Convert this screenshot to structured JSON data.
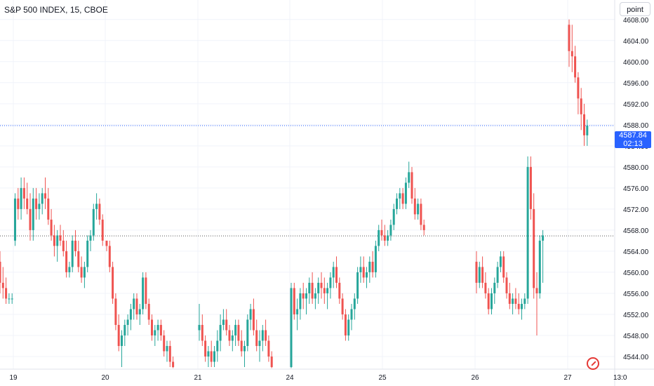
{
  "header": {
    "title": "S&P 500 INDEX, 15, CBOE",
    "point_button": "point"
  },
  "last_price": {
    "value": "4587.84",
    "countdown": "02:13"
  },
  "colors": {
    "up": "#26a69a",
    "down": "#ef5350",
    "grid": "#f0f3fa",
    "last_line": "#2962ff",
    "ref_line": "#555555"
  },
  "chart_data": {
    "type": "candlestick",
    "title": "S&P 500 INDEX, 15, CBOE",
    "ylim": [
      4541.6,
      4611.7
    ],
    "yticks": [
      "4544.00",
      "4548.00",
      "4552.00",
      "4556.00",
      "4560.00",
      "4564.00",
      "4568.00",
      "4572.00",
      "4576.00",
      "4580.00",
      "4584.00",
      "4588.00",
      "4592.00",
      "4596.00",
      "4600.00",
      "4604.00",
      "4608.00"
    ],
    "xticks": [
      "19",
      "20",
      "21",
      "24",
      "25",
      "26",
      "27",
      "13:0"
    ],
    "last_price": 4587.84,
    "reference_price": 4566.9,
    "days": [
      {
        "label": "19",
        "candles": [
          [
            4562,
            4564,
            4556,
            4558
          ],
          [
            4558,
            4561,
            4555,
            4557
          ],
          [
            4557,
            4559,
            4554,
            4555
          ],
          [
            4555,
            4556,
            4554,
            4555
          ],
          [
            4555,
            4556,
            4554,
            4555
          ],
          [
            4566,
            4575,
            4565,
            4574
          ],
          [
            4574,
            4576,
            4570,
            4572
          ],
          [
            4572,
            4578,
            4570,
            4576
          ],
          [
            4576,
            4578,
            4572,
            4574
          ],
          [
            4574,
            4577,
            4571,
            4572
          ],
          [
            4572,
            4575,
            4566,
            4568
          ],
          [
            4568,
            4576,
            4566,
            4574
          ],
          [
            4574,
            4576,
            4570,
            4572
          ],
          [
            4572,
            4575,
            4570,
            4573
          ],
          [
            4573,
            4576,
            4571,
            4575
          ],
          [
            4575,
            4578,
            4572,
            4574
          ],
          [
            4574,
            4576,
            4569,
            4570
          ],
          [
            4570,
            4572,
            4566,
            4567
          ],
          [
            4567,
            4569,
            4563,
            4565
          ],
          [
            4565,
            4568,
            4562,
            4567
          ],
          [
            4567,
            4569,
            4565,
            4566
          ],
          [
            4566,
            4568,
            4563,
            4564
          ],
          [
            4564,
            4566,
            4559,
            4560
          ],
          [
            4560,
            4562,
            4559,
            4561
          ],
          [
            4561,
            4567,
            4560,
            4566
          ],
          [
            4566,
            4568,
            4563,
            4564
          ],
          [
            4564,
            4566,
            4560,
            4561
          ],
          [
            4561,
            4563,
            4558,
            4559
          ],
          [
            4559,
            4562,
            4557,
            4561
          ],
          [
            4561,
            4567,
            4560,
            4566
          ],
          [
            4566,
            4568,
            4564,
            4567
          ],
          [
            4567,
            4573,
            4566,
            4572
          ],
          [
            4572,
            4575,
            4570,
            4573
          ],
          [
            4573,
            4574,
            4569,
            4570
          ],
          [
            4570,
            4571,
            4565,
            4566
          ]
        ]
      },
      {
        "label": "20",
        "candles": [
          [
            4566,
            4566,
            4564,
            4565
          ],
          [
            4565,
            4566,
            4560,
            4561
          ],
          [
            4561,
            4562,
            4554,
            4555
          ],
          [
            4555,
            4556,
            4549,
            4550
          ],
          [
            4550,
            4552,
            4545,
            4546
          ],
          [
            4546,
            4549,
            4542,
            4548
          ],
          [
            4548,
            4551,
            4546,
            4550
          ],
          [
            4550,
            4552,
            4548,
            4551
          ],
          [
            4551,
            4554,
            4549,
            4553
          ],
          [
            4553,
            4556,
            4551,
            4555
          ],
          [
            4555,
            4556,
            4551,
            4552
          ],
          [
            4552,
            4554,
            4550,
            4553
          ],
          [
            4553,
            4560,
            4552,
            4559
          ],
          [
            4559,
            4560,
            4553,
            4554
          ],
          [
            4554,
            4555,
            4550,
            4551
          ],
          [
            4551,
            4552,
            4547,
            4548
          ],
          [
            4548,
            4550,
            4546,
            4549
          ],
          [
            4549,
            4551,
            4547,
            4550
          ],
          [
            4550,
            4551,
            4547,
            4548
          ],
          [
            4548,
            4549,
            4544,
            4545
          ],
          [
            4545,
            4547,
            4543,
            4546
          ],
          [
            4546,
            4547,
            4542,
            4543
          ],
          [
            4543,
            4544,
            4541.8,
            4542
          ]
        ]
      },
      {
        "label": "21",
        "candles": [
          [
            4549,
            4554,
            4547,
            4550
          ],
          [
            4550,
            4552,
            4546,
            4547
          ],
          [
            4547,
            4548,
            4543,
            4544
          ],
          [
            4544,
            4546,
            4542,
            4545
          ],
          [
            4545,
            4547,
            4542,
            4543
          ],
          [
            4543,
            4546,
            4542,
            4545
          ],
          [
            4545,
            4549,
            4543,
            4547
          ],
          [
            4547,
            4552,
            4545,
            4550
          ],
          [
            4550,
            4553,
            4549,
            4551
          ],
          [
            4551,
            4553,
            4548,
            4549
          ],
          [
            4549,
            4550,
            4546,
            4547
          ],
          [
            4547,
            4549,
            4545,
            4548
          ],
          [
            4548,
            4551,
            4546,
            4550
          ],
          [
            4550,
            4551,
            4546,
            4547
          ],
          [
            4547,
            4549,
            4544,
            4545
          ],
          [
            4545,
            4547,
            4542,
            4546
          ],
          [
            4546,
            4552,
            4545,
            4551
          ],
          [
            4551,
            4554,
            4549,
            4553
          ],
          [
            4553,
            4555,
            4548,
            4549
          ],
          [
            4549,
            4551,
            4545,
            4546
          ],
          [
            4546,
            4549,
            4543,
            4547
          ],
          [
            4547,
            4550,
            4545,
            4549
          ],
          [
            4549,
            4551,
            4546,
            4547
          ],
          [
            4547,
            4548,
            4543,
            4544
          ],
          [
            4544,
            4545,
            4541.8,
            4542
          ]
        ]
      },
      {
        "label": "24",
        "candles": [
          [
            4542,
            4558,
            4541.8,
            4557
          ],
          [
            4557,
            4558,
            4551,
            4552
          ],
          [
            4552,
            4555,
            4549,
            4553
          ],
          [
            4553,
            4557,
            4551,
            4556
          ],
          [
            4556,
            4558,
            4553,
            4555
          ],
          [
            4555,
            4557,
            4552,
            4556
          ],
          [
            4556,
            4559,
            4554,
            4558
          ],
          [
            4558,
            4560,
            4554,
            4555
          ],
          [
            4555,
            4557,
            4553,
            4556
          ],
          [
            4556,
            4559,
            4554,
            4558
          ],
          [
            4558,
            4560,
            4555,
            4557
          ],
          [
            4557,
            4559,
            4554,
            4556
          ],
          [
            4556,
            4558,
            4553,
            4557
          ],
          [
            4557,
            4560,
            4555,
            4559
          ],
          [
            4559,
            4562,
            4557,
            4561
          ],
          [
            4561,
            4563,
            4557,
            4558
          ],
          [
            4558,
            4559,
            4554,
            4555
          ],
          [
            4555,
            4556,
            4551,
            4552
          ],
          [
            4552,
            4553,
            4547,
            4548
          ],
          [
            4548,
            4552,
            4547,
            4551
          ],
          [
            4551,
            4554,
            4549,
            4553
          ],
          [
            4553,
            4556,
            4551,
            4555
          ],
          [
            4555,
            4561,
            4554,
            4560
          ],
          [
            4560,
            4563,
            4558,
            4561
          ],
          [
            4561,
            4563,
            4558,
            4559
          ],
          [
            4559,
            4561,
            4557,
            4560
          ],
          [
            4560,
            4563,
            4558,
            4562
          ],
          [
            4562,
            4564,
            4559,
            4560
          ],
          [
            4560,
            4566,
            4559,
            4565
          ],
          [
            4565,
            4569,
            4564,
            4568
          ],
          [
            4568,
            4570,
            4566,
            4567
          ],
          [
            4567,
            4569,
            4565,
            4566
          ],
          [
            4566,
            4568,
            4565,
            4567
          ],
          [
            4567,
            4570,
            4566,
            4569
          ],
          [
            4569,
            4573,
            4568,
            4572
          ],
          [
            4572,
            4575,
            4571,
            4574
          ],
          [
            4574,
            4576,
            4572,
            4575
          ],
          [
            4575,
            4576,
            4572,
            4573
          ],
          [
            4573,
            4578,
            4572,
            4577
          ],
          [
            4577,
            4581,
            4576,
            4579
          ],
          [
            4579,
            4580,
            4573,
            4574
          ],
          [
            4574,
            4576,
            4570,
            4571
          ],
          [
            4571,
            4574,
            4570,
            4573
          ],
          [
            4573,
            4574,
            4568,
            4569
          ],
          [
            4569,
            4570,
            4567,
            4568
          ]
        ]
      },
      {
        "label": "26",
        "candles": [
          [
            4562,
            4564,
            4556,
            4558
          ],
          [
            4558,
            4562,
            4557,
            4561
          ],
          [
            4561,
            4563,
            4557,
            4558
          ],
          [
            4558,
            4560,
            4555,
            4556
          ],
          [
            4556,
            4557,
            4552,
            4553
          ],
          [
            4553,
            4557,
            4552,
            4556
          ],
          [
            4556,
            4559,
            4554,
            4558
          ],
          [
            4558,
            4562,
            4557,
            4561
          ],
          [
            4561,
            4564,
            4560,
            4563
          ],
          [
            4563,
            4564,
            4558,
            4559
          ],
          [
            4559,
            4560,
            4555,
            4556
          ],
          [
            4556,
            4558,
            4553,
            4554
          ],
          [
            4554,
            4556,
            4552,
            4555
          ],
          [
            4555,
            4557,
            4553,
            4554
          ],
          [
            4554,
            4556,
            4552,
            4553
          ],
          [
            4553,
            4555,
            4551,
            4554
          ],
          [
            4554,
            4556,
            4553,
            4555
          ],
          [
            4555,
            4582,
            4554,
            4580
          ],
          [
            4580,
            4582,
            4570,
            4572
          ],
          [
            4572,
            4575,
            4555,
            4557
          ],
          [
            4557,
            4560,
            4548,
            4556
          ],
          [
            4556,
            4567,
            4555,
            4566
          ],
          [
            4566,
            4568,
            4558,
            4567
          ]
        ]
      },
      {
        "label": "27",
        "candles": [
          [
            4607,
            4608,
            4599,
            4602
          ],
          [
            4602,
            4607,
            4598,
            4601
          ],
          [
            4601,
            4603,
            4596,
            4597
          ],
          [
            4597,
            4598,
            4590,
            4593
          ],
          [
            4593,
            4595,
            4587,
            4590
          ],
          [
            4590,
            4592,
            4584,
            4586
          ],
          [
            4586,
            4589,
            4584,
            4587.84
          ]
        ]
      }
    ]
  }
}
